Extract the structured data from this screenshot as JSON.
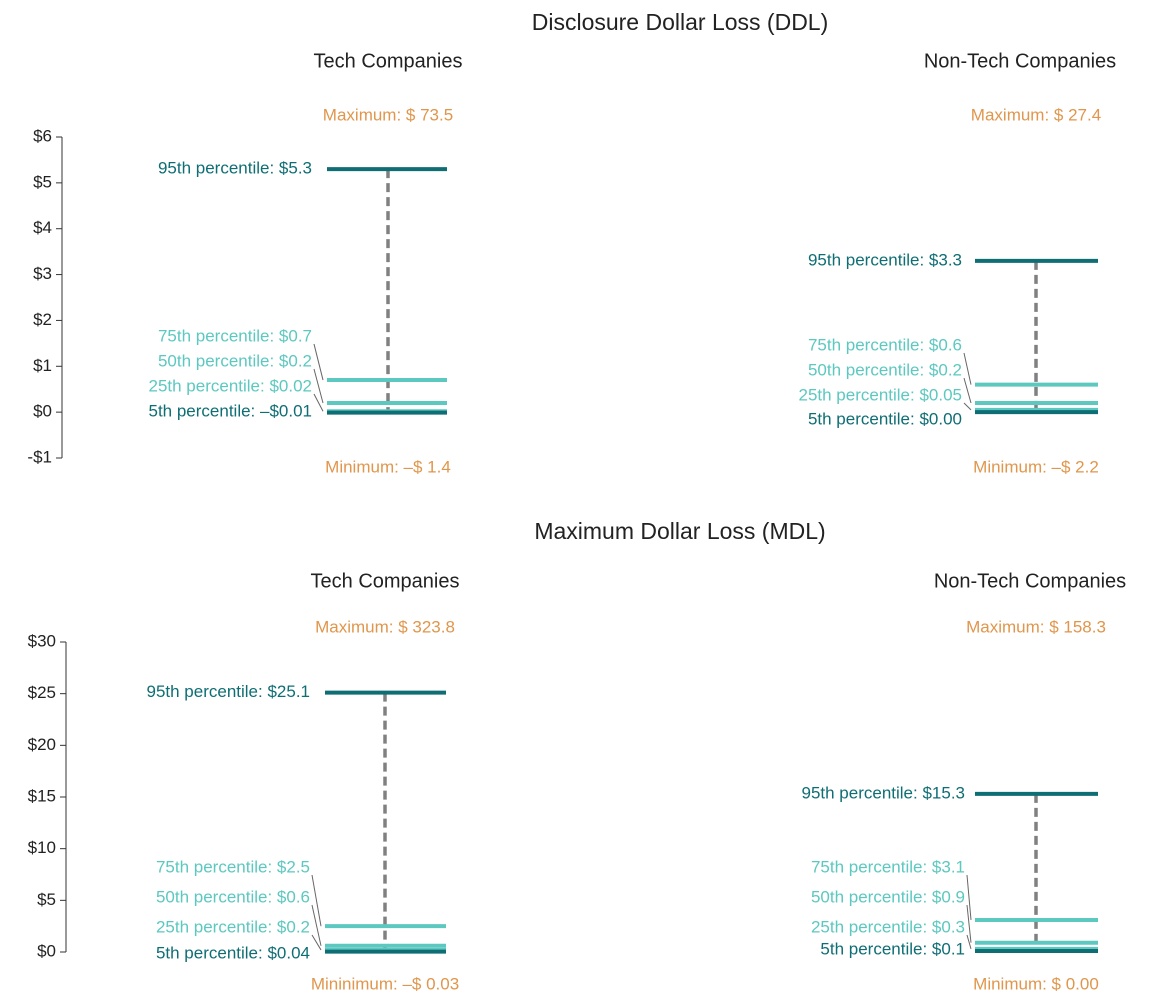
{
  "section_titles": [
    "Disclosure Dollar Loss (DDL)",
    "Maximum Dollar Loss (MDL)"
  ],
  "chart_data": [
    {
      "type": "percentile",
      "title": "Tech Companies",
      "ylim": [
        -1,
        6
      ],
      "yticks": [
        {
          "value": -1,
          "label": "-$1"
        },
        {
          "value": 0,
          "label": "$0"
        },
        {
          "value": 1,
          "label": "$1"
        },
        {
          "value": 2,
          "label": "$2"
        },
        {
          "value": 3,
          "label": "$3"
        },
        {
          "value": 4,
          "label": "$4"
        },
        {
          "value": 5,
          "label": "$5"
        },
        {
          "value": 6,
          "label": "$6"
        }
      ],
      "values": [
        5.3,
        0.7,
        0.2,
        0.02,
        -0.01
      ],
      "value_labels": [
        "95th percentile: $5.3",
        "75th percentile: $0.7",
        "50th percentile: $0.2",
        "25th percentile: $0.02",
        "5th percentile: –$0.01"
      ],
      "colors": [
        "#0e6e74",
        "#5cc8c0",
        "#5cc8c0",
        "#5cc8c0",
        "#0e6e74"
      ],
      "annotations": [
        "Maximum: $ 73.5",
        "Minimum: –$ 1.4"
      ]
    },
    {
      "type": "percentile",
      "title": "Non-Tech Companies",
      "ylim": [
        -1,
        6
      ],
      "values": [
        3.3,
        0.6,
        0.2,
        0.05,
        0.0
      ],
      "value_labels": [
        "95th percentile: $3.3",
        "75th percentile: $0.6",
        "50th percentile: $0.2",
        "25th percentile: $0.05",
        "5th percentile: $0.00"
      ],
      "colors": [
        "#0e6e74",
        "#5cc8c0",
        "#5cc8c0",
        "#5cc8c0",
        "#0e6e74"
      ],
      "annotations": [
        "Maximum: $ 27.4",
        "Minimum: –$ 2.2"
      ]
    },
    {
      "type": "percentile",
      "title": "Tech Companies",
      "ylim": [
        0,
        30
      ],
      "yticks": [
        {
          "value": 0,
          "label": "$0"
        },
        {
          "value": 5,
          "label": "$5"
        },
        {
          "value": 10,
          "label": "$10"
        },
        {
          "value": 15,
          "label": "$15"
        },
        {
          "value": 20,
          "label": "$20"
        },
        {
          "value": 25,
          "label": "$25"
        },
        {
          "value": 30,
          "label": "$30"
        }
      ],
      "values": [
        25.1,
        2.5,
        0.6,
        0.2,
        0.04
      ],
      "value_labels": [
        "95th percentile: $25.1",
        "75th percentile: $2.5",
        "50th percentile: $0.6",
        "25th percentile: $0.2",
        "5th percentile: $0.04"
      ],
      "colors": [
        "#0e6e74",
        "#5cc8c0",
        "#5cc8c0",
        "#5cc8c0",
        "#0e6e74"
      ],
      "annotations": [
        "Maximum: $ 323.8",
        "Mininimum: –$ 0.03"
      ]
    },
    {
      "type": "percentile",
      "title": "Non-Tech Companies",
      "ylim": [
        0,
        30
      ],
      "values": [
        15.3,
        3.1,
        0.9,
        0.3,
        0.1
      ],
      "value_labels": [
        "95th percentile: $15.3",
        "75th percentile: $3.1",
        "50th percentile: $0.9",
        "25th percentile: $0.3",
        "5th percentile: $0.1"
      ],
      "colors": [
        "#0e6e74",
        "#5cc8c0",
        "#5cc8c0",
        "#5cc8c0",
        "#0e6e74"
      ],
      "annotations": [
        "Maximum: $ 158.3",
        "Minimum: $ 0.00"
      ]
    }
  ]
}
